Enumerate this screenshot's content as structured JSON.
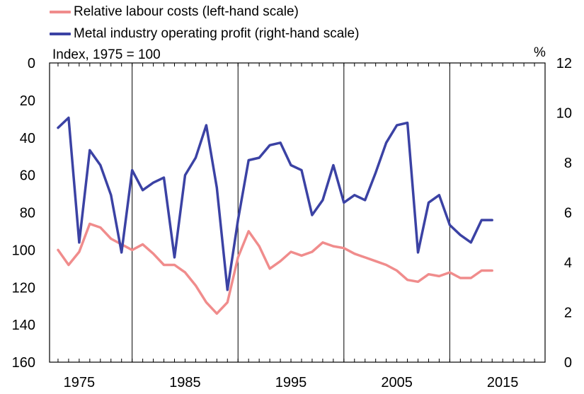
{
  "legend": [
    {
      "label": "Relative labour costs (left-hand scale)",
      "color": "#f08c8c"
    },
    {
      "label": "Metal industry operating profit (right-hand scale)",
      "color": "#3b42a4"
    }
  ],
  "left_unit": "Index, 1975 = 100",
  "right_unit": "%",
  "chart_data": {
    "type": "line",
    "xlim": [
      1972.2,
      2019
    ],
    "x_ticks": [
      1975,
      1985,
      1995,
      2005,
      2015
    ],
    "x_tick_labels": [
      "1975",
      "1985",
      "1995",
      "2005",
      "2015"
    ],
    "x_gridlines": [
      1980,
      1990,
      2000,
      2010
    ],
    "grid": true,
    "left_axis": {
      "label": "Index, 1975 = 100",
      "ylim": [
        0,
        160
      ],
      "inverted": true,
      "ticks": [
        0,
        20,
        40,
        60,
        80,
        100,
        120,
        140,
        160
      ],
      "tick_labels": [
        "0",
        "20",
        "40",
        "60",
        "80",
        "100",
        "120",
        "140",
        "160"
      ]
    },
    "right_axis": {
      "label": "%",
      "ylim": [
        0,
        12
      ],
      "inverted": false,
      "ticks": [
        0,
        2,
        4,
        6,
        8,
        10,
        12
      ],
      "tick_labels": [
        "0",
        "2",
        "4",
        "6",
        "8",
        "10",
        "12"
      ]
    },
    "legend_position": "top-left",
    "series": [
      {
        "name": "Relative labour costs (left-hand scale)",
        "axis": "left",
        "color": "#f08c8c",
        "x": [
          1973,
          1974,
          1975,
          1976,
          1977,
          1978,
          1979,
          1980,
          1981,
          1982,
          1983,
          1984,
          1985,
          1986,
          1987,
          1988,
          1989,
          1990,
          1991,
          1992,
          1993,
          1994,
          1995,
          1996,
          1997,
          1998,
          1999,
          2000,
          2001,
          2002,
          2003,
          2004,
          2005,
          2006,
          2007,
          2008,
          2009,
          2010,
          2011,
          2012,
          2013,
          2014
        ],
        "y": [
          100,
          108,
          101,
          86,
          88,
          94,
          97,
          100,
          97,
          102,
          108,
          108,
          112,
          119,
          128,
          134,
          128,
          104,
          90,
          98,
          110,
          106,
          101,
          103,
          101,
          96,
          98,
          99,
          102,
          104,
          106,
          108,
          111,
          116,
          117,
          113,
          114,
          112,
          115,
          115,
          111,
          111
        ]
      },
      {
        "name": "Metal industry operating profit (right-hand scale)",
        "axis": "right",
        "color": "#3b42a4",
        "x": [
          1973,
          1974,
          1975,
          1976,
          1977,
          1978,
          1979,
          1980,
          1981,
          1982,
          1983,
          1984,
          1985,
          1986,
          1987,
          1988,
          1989,
          1990,
          1991,
          1992,
          1993,
          1994,
          1995,
          1996,
          1997,
          1998,
          1999,
          2000,
          2001,
          2002,
          2003,
          2004,
          2005,
          2006,
          2007,
          2008,
          2009,
          2010,
          2011,
          2012,
          2013,
          2014
        ],
        "y": [
          9.4,
          9.8,
          4.8,
          8.5,
          7.9,
          6.7,
          4.4,
          7.7,
          6.9,
          7.2,
          7.4,
          4.2,
          7.5,
          8.2,
          9.5,
          7.0,
          2.9,
          5.7,
          8.1,
          8.2,
          8.7,
          8.8,
          7.9,
          7.7,
          5.9,
          6.5,
          7.9,
          6.4,
          6.7,
          6.5,
          7.6,
          8.8,
          9.5,
          9.6,
          4.4,
          6.4,
          6.7,
          5.5,
          5.1,
          4.8,
          5.7,
          5.7
        ]
      }
    ]
  }
}
